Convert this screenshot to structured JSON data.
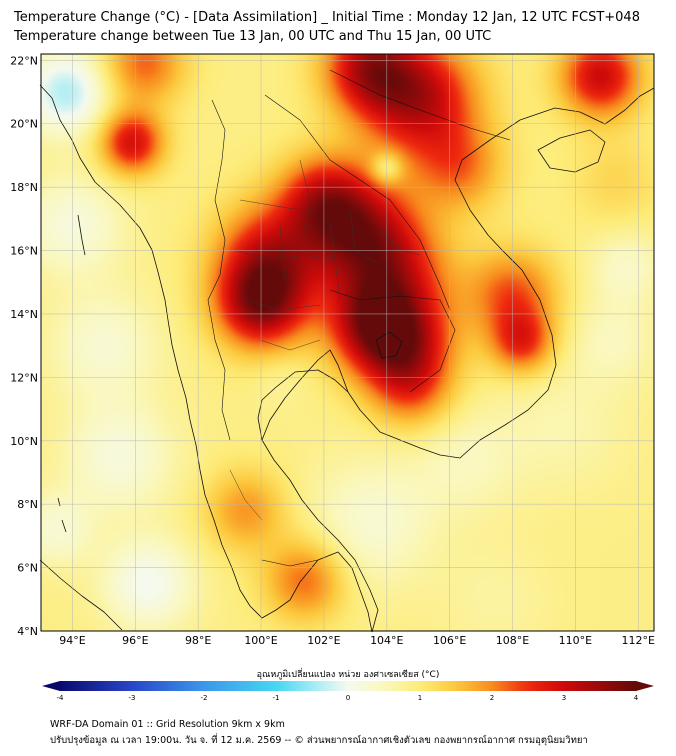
{
  "header": {
    "title_line1": "Temperature Change (°C) - [Data Assimilation] _ Initial Time : Monday 12 Jan, 12 UTC FCST+048",
    "title_line2": "Temperature change between Tue 13 Jan, 00 UTC and Thu 15 Jan, 00 UTC"
  },
  "footer": {
    "line1": "WRF-DA Domain 01 :: Grid Resolution 9km x 9km",
    "line2": "ปรับปรุงข้อมูล ณ เวลา 19:00น. วัน จ. ที่ 12 ม.ค. 2569 -- © ส่วนพยากรณ์อากาศเชิงตัวเลข กองพยากรณ์อากาศ กรมอุตุนิยมวิทยา"
  },
  "chart_data": {
    "type": "heatmap",
    "title": "Temperature Change (°C) - [Data Assimilation] _ Initial Time : Monday 12 Jan, 12 UTC FCST+048",
    "subtitle": "Temperature change between Tue 13 Jan, 00 UTC and Thu 15 Jan, 00 UTC",
    "x_axis": {
      "range": [
        93,
        112.5
      ],
      "ticks": [
        94,
        96,
        98,
        100,
        102,
        104,
        106,
        108,
        110,
        112
      ],
      "tick_labels": [
        "94°E",
        "96°E",
        "98°E",
        "100°E",
        "102°E",
        "104°E",
        "106°E",
        "108°E",
        "110°E",
        "112°E"
      ]
    },
    "y_axis": {
      "range": [
        4,
        22.2
      ],
      "ticks": [
        4,
        6,
        8,
        10,
        12,
        14,
        16,
        18,
        20,
        22
      ],
      "tick_labels": [
        "4°N",
        "6°N",
        "8°N",
        "10°N",
        "12°N",
        "14°N",
        "16°N",
        "18°N",
        "20°N",
        "22°N"
      ]
    },
    "grid": true,
    "colorbar": {
      "label": "อุณหภูมิเปลี่ยนแปลง หน่วย องศาเซลเซียส (°C)",
      "range": [
        -4,
        4
      ],
      "ticks": [
        -4,
        -3,
        -2,
        -1,
        0,
        1,
        2,
        3,
        4
      ],
      "tick_labels": [
        "-4",
        "-3",
        "-2",
        "-1",
        "0",
        "1",
        "2",
        "3",
        "4"
      ]
    },
    "field_background_value": 0.9,
    "field_features": [
      {
        "lon": 100.0,
        "lat": 14.3,
        "value": 2.4,
        "spread": 1.0
      },
      {
        "lon": 100.3,
        "lat": 15.8,
        "value": 1.9,
        "spread": 1.2
      },
      {
        "lon": 102.0,
        "lat": 17.6,
        "value": 1.8,
        "spread": 1.0
      },
      {
        "lon": 103.2,
        "lat": 16.6,
        "value": 1.9,
        "spread": 1.2
      },
      {
        "lon": 104.2,
        "lat": 15.2,
        "value": 1.6,
        "spread": 1.3
      },
      {
        "lon": 104.5,
        "lat": 13.0,
        "value": 2.0,
        "spread": 1.1
      },
      {
        "lon": 103.5,
        "lat": 13.7,
        "value": 1.7,
        "spread": 1.0
      },
      {
        "lon": 104.8,
        "lat": 11.6,
        "value": 1.0,
        "spread": 0.9
      },
      {
        "lon": 105.0,
        "lat": 20.8,
        "value": 2.3,
        "spread": 1.3
      },
      {
        "lon": 103.4,
        "lat": 21.8,
        "value": 2.0,
        "spread": 1.0
      },
      {
        "lon": 106.3,
        "lat": 18.6,
        "value": 1.1,
        "spread": 1.0
      },
      {
        "lon": 108.0,
        "lat": 14.6,
        "value": 1.4,
        "spread": 1.0
      },
      {
        "lon": 108.3,
        "lat": 13.1,
        "value": 1.5,
        "spread": 0.7
      },
      {
        "lon": 110.8,
        "lat": 21.5,
        "value": 2.1,
        "spread": 0.9
      },
      {
        "lon": 95.9,
        "lat": 19.4,
        "value": 2.0,
        "spread": 0.7
      },
      {
        "lon": 96.3,
        "lat": 21.9,
        "value": 1.3,
        "spread": 0.9
      },
      {
        "lon": 99.5,
        "lat": 7.8,
        "value": 1.0,
        "spread": 0.9
      },
      {
        "lon": 101.4,
        "lat": 5.6,
        "value": 1.3,
        "spread": 0.9
      },
      {
        "lon": 93.8,
        "lat": 21.0,
        "value": -1.3,
        "spread": 0.9
      },
      {
        "lon": 94.0,
        "lat": 16.8,
        "value": -0.7,
        "spread": 1.1
      },
      {
        "lon": 95.0,
        "lat": 13.0,
        "value": -0.6,
        "spread": 1.2
      },
      {
        "lon": 95.5,
        "lat": 9.5,
        "value": -0.7,
        "spread": 1.2
      },
      {
        "lon": 96.4,
        "lat": 5.5,
        "value": -0.9,
        "spread": 1.0
      },
      {
        "lon": 93.5,
        "lat": 7.2,
        "value": -0.6,
        "spread": 0.8
      },
      {
        "lon": 103.5,
        "lat": 7.4,
        "value": -0.6,
        "spread": 1.4
      },
      {
        "lon": 106.5,
        "lat": 9.4,
        "value": -0.4,
        "spread": 1.2
      },
      {
        "lon": 109.6,
        "lat": 10.5,
        "value": -0.3,
        "spread": 1.4
      },
      {
        "lon": 111.6,
        "lat": 15.5,
        "value": -0.5,
        "spread": 0.8
      },
      {
        "lon": 111.2,
        "lat": 13.2,
        "value": -0.4,
        "spread": 1.0
      },
      {
        "lon": 111.3,
        "lat": 18.2,
        "value": 0.4,
        "spread": 1.0
      },
      {
        "lon": 104.0,
        "lat": 18.6,
        "value": -1.0,
        "spread": 0.35
      },
      {
        "lon": 100.6,
        "lat": 12.0,
        "value": -0.2,
        "spread": 0.6
      },
      {
        "lon": 107.5,
        "lat": 5.0,
        "value": -0.2,
        "spread": 1.2
      }
    ]
  }
}
